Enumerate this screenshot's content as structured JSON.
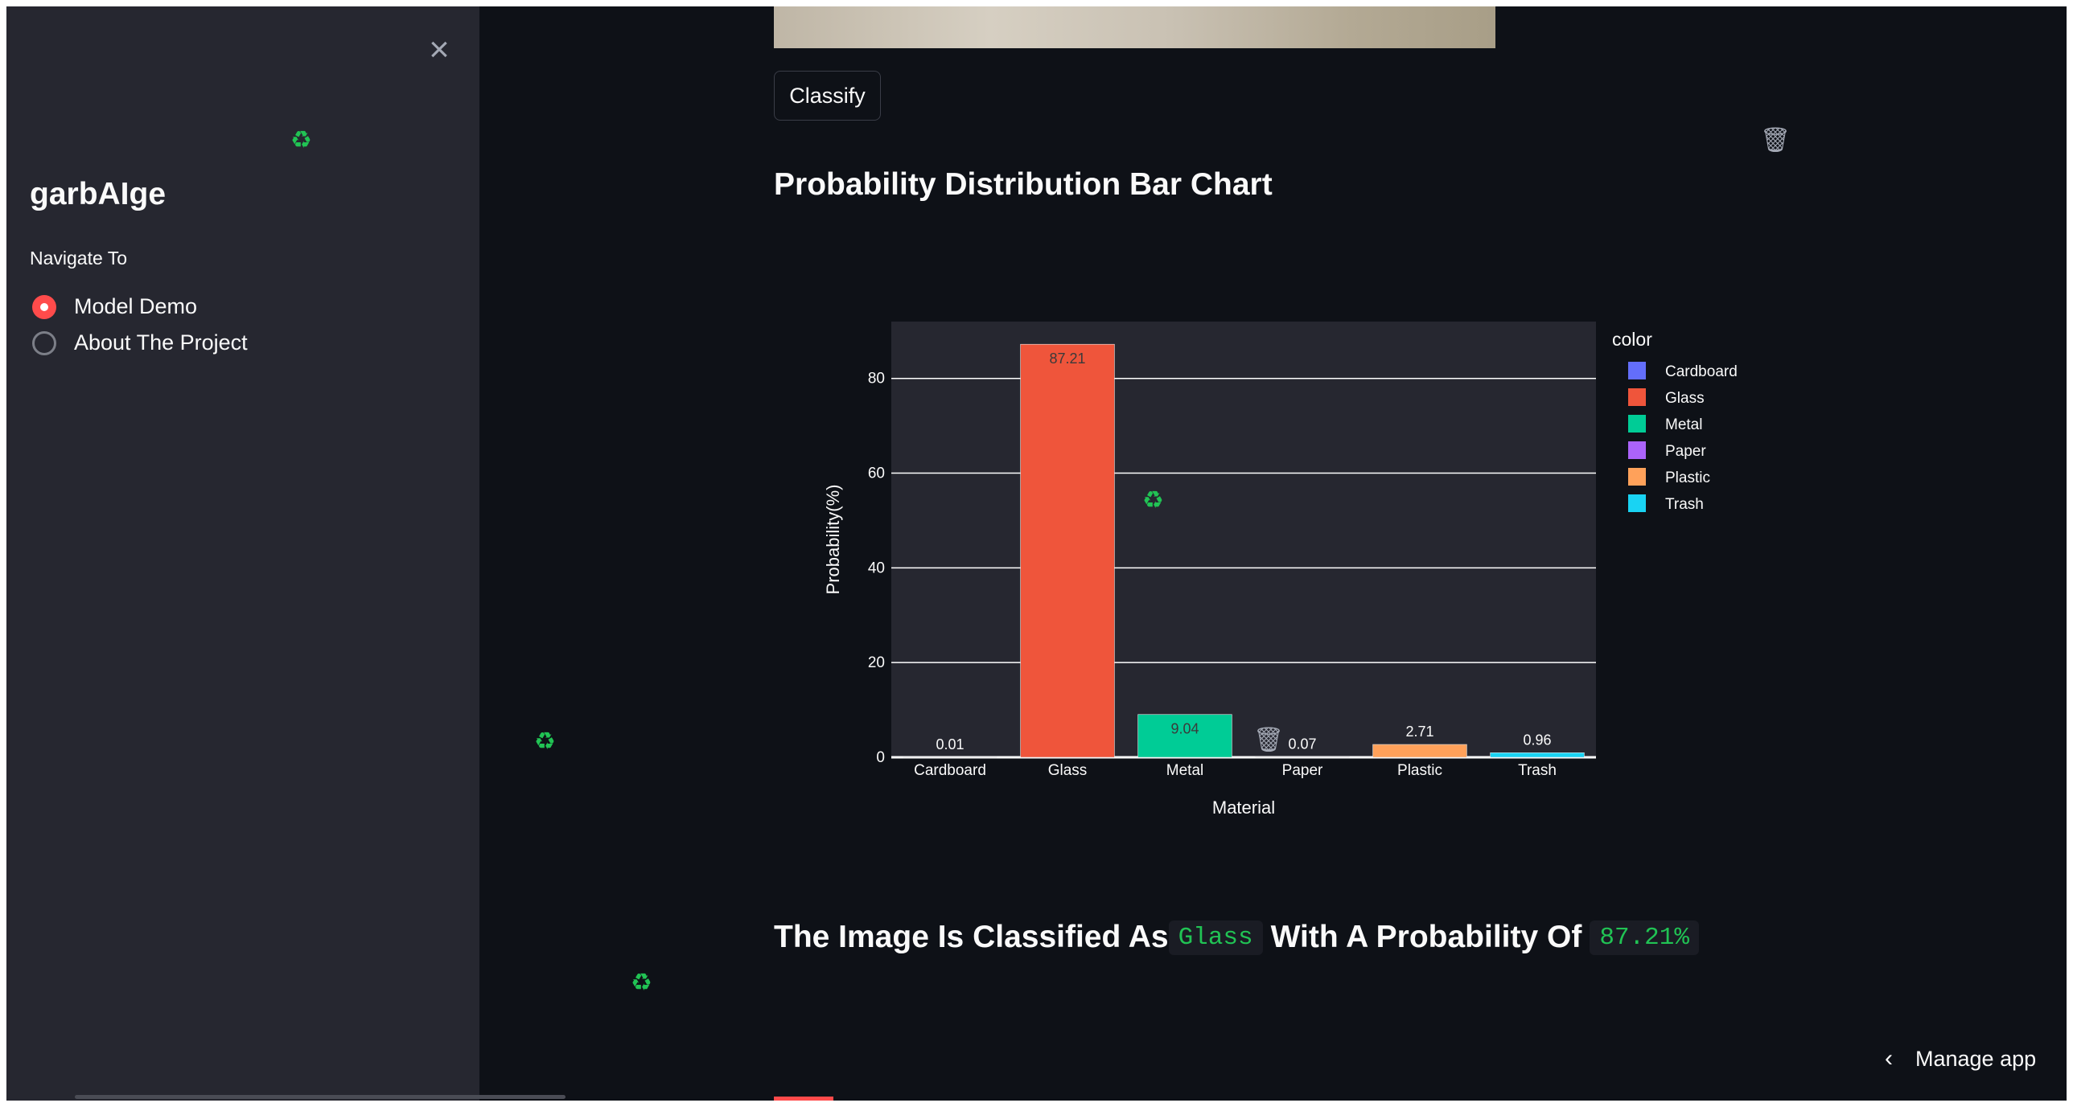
{
  "sidebar": {
    "close_icon": "close-icon",
    "app_title": "garbAIge",
    "nav_label": "Navigate To",
    "options": [
      {
        "label": "Model Demo",
        "selected": true
      },
      {
        "label": "About The Project",
        "selected": false
      }
    ]
  },
  "main": {
    "classify_label": "Classify",
    "section_title": "Probability Distribution Bar Chart",
    "result": {
      "prefix": "The Image Is Classified As",
      "class_value": "Glass",
      "middle": "With A Probability Of",
      "prob_value": "87.21%"
    }
  },
  "footer": {
    "manage_label": "Manage app"
  },
  "decor": {
    "recycle_glyph": "♻",
    "trash_glyph": "🗑"
  },
  "colors": {
    "accent": "#ff4b4b",
    "code_green": "#21c354",
    "background": "#0e1117",
    "sidebar": "#262730"
  },
  "chart_data": {
    "type": "bar",
    "categories": [
      "Cardboard",
      "Glass",
      "Metal",
      "Paper",
      "Plastic",
      "Trash"
    ],
    "values": [
      0.01,
      87.21,
      9.04,
      0.07,
      2.71,
      0.96
    ],
    "value_labels": [
      "0.01",
      "87.21",
      "9.04",
      "0.07",
      "2.71",
      "0.96"
    ],
    "colors": [
      "#636efa",
      "#ef553b",
      "#00cc96",
      "#ab63fa",
      "#ffa15a",
      "#19d3f3"
    ],
    "xlabel": "Material",
    "ylabel": "Probability(%)",
    "ylim": [
      0,
      92
    ],
    "yticks": [
      0,
      20,
      40,
      60,
      80
    ],
    "legend_title": "color",
    "legend_position": "right",
    "grid": true
  }
}
